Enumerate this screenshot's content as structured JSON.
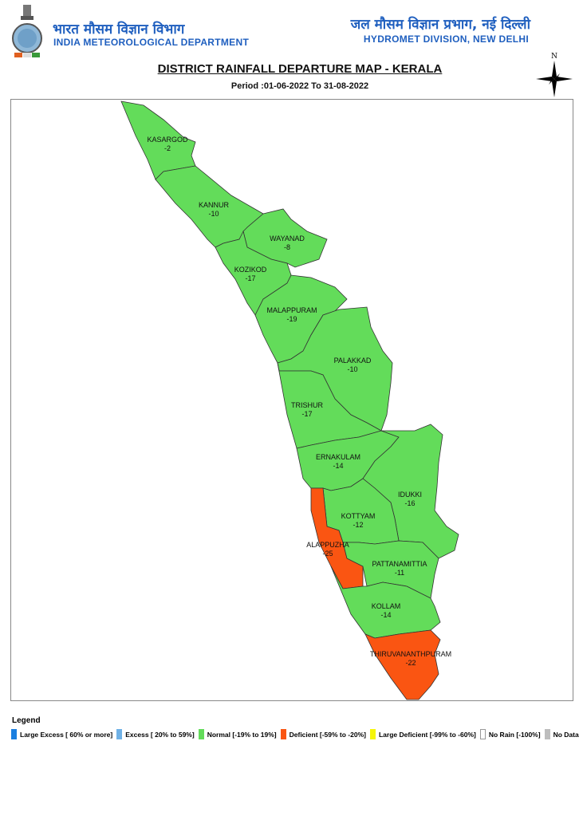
{
  "header": {
    "left_hindi": "भारत मौसम विज्ञान विभाग",
    "left_english": "INDIA METEOROLOGICAL DEPARTMENT",
    "right_hindi": "जल मौसम विज्ञान प्रभाग, नई दिल्ली",
    "right_english": "HYDROMET DIVISION, NEW DELHI",
    "logo_icon": "imd-emblem-icon"
  },
  "title": "DISTRICT RAINFALL DEPARTURE MAP - KERALA",
  "period": "Period :01-06-2022 To 31-08-2022",
  "north_arrow": {
    "label": "N",
    "icon": "compass-rose-icon"
  },
  "colors": {
    "large_excess": "#1a7fe0",
    "excess": "#6fb1e6",
    "normal": "#63dc5a",
    "deficient": "#fa5512",
    "large_deficient": "#f5f50a",
    "no_rain": "#ffffff",
    "no_data": "#bdbdbd"
  },
  "districts": [
    {
      "name": "KASARGOD",
      "departure": "-2",
      "category": "normal"
    },
    {
      "name": "KANNUR",
      "departure": "-10",
      "category": "normal"
    },
    {
      "name": "WAYANAD",
      "departure": "-8",
      "category": "normal"
    },
    {
      "name": "KOZIKOD",
      "departure": "-17",
      "category": "normal"
    },
    {
      "name": "MALAPPURAM",
      "departure": "-19",
      "category": "normal"
    },
    {
      "name": "PALAKKAD",
      "departure": "-10",
      "category": "normal"
    },
    {
      "name": "TRISHUR",
      "departure": "-17",
      "category": "normal"
    },
    {
      "name": "ERNAKULAM",
      "departure": "-14",
      "category": "normal"
    },
    {
      "name": "IDUKKI",
      "departure": "-16",
      "category": "normal"
    },
    {
      "name": "KOTTYAM",
      "departure": "-12",
      "category": "normal"
    },
    {
      "name": "ALAPPUZHA",
      "departure": "-25",
      "category": "deficient"
    },
    {
      "name": "PATTANAMITTIA",
      "departure": "-11",
      "category": "normal"
    },
    {
      "name": "KOLLAM",
      "departure": "-14",
      "category": "normal"
    },
    {
      "name": "THIRUVANANTHPURAM",
      "departure": "-22",
      "category": "deficient"
    }
  ],
  "legend": {
    "title": "Legend",
    "items": [
      {
        "key": "large_excess",
        "label": "Large Excess [ 60% or more]"
      },
      {
        "key": "excess",
        "label": "Excess [ 20% to 59%]"
      },
      {
        "key": "normal",
        "label": "Normal [-19% to 19%]"
      },
      {
        "key": "deficient",
        "label": "Deficient [-59% to -20%]"
      },
      {
        "key": "large_deficient",
        "label": "Large Deficient [-99% to -60%]"
      },
      {
        "key": "no_rain",
        "label": "No Rain  [-100%]"
      },
      {
        "key": "no_data",
        "label": "No Data"
      }
    ]
  }
}
